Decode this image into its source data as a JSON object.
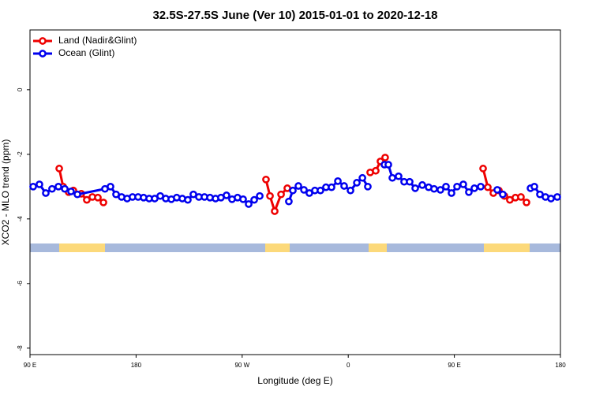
{
  "chart_data": {
    "type": "line",
    "title": "32.5S-27.5S June (Ver 10)   2015-01-01 to 2020-12-18",
    "x_label": "Longitude (deg E)",
    "y_label": "XCO2 - MLO trend (ppm)",
    "xlim": [
      90,
      540
    ],
    "ylim": [
      -8.2,
      1.85
    ],
    "xticks": [
      {
        "value": 90,
        "label": "90 E"
      },
      180,
      {
        "value": 270,
        "label": "90 W"
      },
      {
        "value": 360,
        "label": "0"
      },
      {
        "value": 450,
        "label": "90 E"
      },
      {
        "value": 540,
        "label": "180"
      }
    ],
    "yticks": [
      0,
      -2,
      -4,
      -6,
      -8
    ],
    "legend": "top-left",
    "series": [
      {
        "name": "Land (Nadir&Glint)",
        "color": "#ee0000",
        "x": [
          114.8,
          118.1,
          122.8,
          126.8,
          133.5,
          138.2,
          142.9,
          147.6,
          152.3,
          null,
          290.2,
          293.6,
          297.6,
          303.0,
          308.3,
          null,
          378.6,
          383.3,
          387.3,
          391.3,
          null,
          474.4,
          478.4,
          483.1,
          487.8,
          492.5,
          497.1,
          501.8,
          506.5,
          511.2
        ],
        "values": [
          -2.44,
          -3.0,
          -3.17,
          -3.12,
          -3.22,
          -3.41,
          -3.32,
          -3.34,
          -3.49,
          null,
          -2.78,
          -3.29,
          -3.76,
          -3.24,
          -3.05,
          null,
          -2.56,
          -2.51,
          -2.22,
          -2.1,
          null,
          -2.44,
          -3.02,
          -3.2,
          -3.12,
          -3.29,
          -3.41,
          -3.34,
          -3.32,
          -3.49
        ]
      },
      {
        "name": "Ocean (Glint)",
        "color": "#0000ee",
        "x": [
          92.7,
          98.0,
          103.4,
          108.7,
          114.1,
          119.5,
          124.8,
          130.2,
          153.6,
          158.3,
          163.0,
          167.7,
          172.4,
          177.0,
          181.7,
          186.4,
          191.1,
          195.8,
          200.5,
          205.2,
          209.9,
          214.5,
          219.2,
          223.9,
          228.6,
          233.3,
          238.0,
          242.7,
          247.4,
          252.0,
          256.7,
          261.4,
          266.1,
          270.8,
          275.5,
          280.2,
          284.9,
          null,
          309.6,
          313.0,
          317.7,
          322.4,
          327.0,
          331.7,
          336.4,
          341.1,
          345.8,
          351.2,
          356.5,
          361.9,
          367.3,
          372.0,
          376.6,
          null,
          390.7,
          394.0,
          397.4,
          402.7,
          407.4,
          412.1,
          416.8,
          422.8,
          428.2,
          432.8,
          438.2,
          442.9,
          447.6,
          452.3,
          457.6,
          462.3,
          467.0,
          472.4,
          null,
          486.4,
          491.1,
          null,
          514.6,
          517.9,
          522.6,
          527.3,
          532.0,
          537.3
        ],
        "values": [
          -3.0,
          -2.93,
          -3.2,
          -3.07,
          -3.0,
          -3.07,
          -3.15,
          -3.24,
          -3.07,
          -3.0,
          -3.24,
          -3.32,
          -3.37,
          -3.32,
          -3.32,
          -3.34,
          -3.37,
          -3.37,
          -3.29,
          -3.37,
          -3.39,
          -3.34,
          -3.37,
          -3.41,
          -3.24,
          -3.32,
          -3.32,
          -3.34,
          -3.37,
          -3.34,
          -3.27,
          -3.39,
          -3.34,
          -3.39,
          -3.54,
          -3.41,
          -3.29,
          null,
          -3.46,
          -3.12,
          -2.98,
          -3.1,
          -3.2,
          -3.12,
          -3.12,
          -3.02,
          -3.02,
          -2.83,
          -2.98,
          -3.12,
          -2.88,
          -2.73,
          -3.0,
          null,
          -2.32,
          -2.32,
          -2.73,
          -2.68,
          -2.85,
          -2.85,
          -3.05,
          -2.95,
          -3.02,
          -3.07,
          -3.1,
          -3.0,
          -3.2,
          -3.0,
          -2.93,
          -3.17,
          -3.05,
          -3.0,
          null,
          -3.1,
          -3.24,
          null,
          -3.05,
          -3.0,
          -3.24,
          -3.32,
          -3.37,
          -3.32
        ]
      }
    ]
  }
}
